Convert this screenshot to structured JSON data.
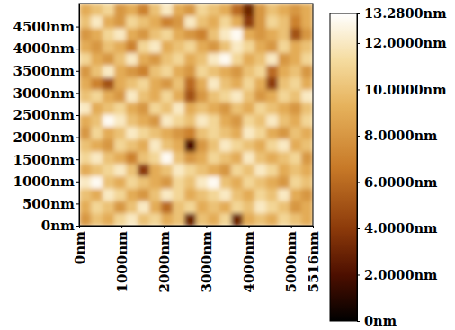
{
  "chart_data": {
    "type": "heatmap",
    "xlim": [
      0,
      5516
    ],
    "ylim": [
      0,
      5020
    ],
    "xticks": [
      {
        "value": 0,
        "label": "0nm"
      },
      {
        "value": 1000,
        "label": "1000nm"
      },
      {
        "value": 2000,
        "label": "2000nm"
      },
      {
        "value": 3000,
        "label": "3000nm"
      },
      {
        "value": 4000,
        "label": "4000nm"
      },
      {
        "value": 5000,
        "label": "5000nm"
      },
      {
        "value": 5516,
        "label": "5516nm"
      }
    ],
    "yticks": [
      {
        "value": 0,
        "label": "0nm"
      },
      {
        "value": 500,
        "label": "500nm"
      },
      {
        "value": 1000,
        "label": "1000nm"
      },
      {
        "value": 1500,
        "label": "1500nm"
      },
      {
        "value": 2000,
        "label": "2000nm"
      },
      {
        "value": 2500,
        "label": "2500nm"
      },
      {
        "value": 3000,
        "label": "3000nm"
      },
      {
        "value": 3500,
        "label": "3500nm"
      },
      {
        "value": 4000,
        "label": "4000nm"
      },
      {
        "value": 4500,
        "label": "4500nm"
      }
    ],
    "cells": [
      [
        9,
        10,
        11,
        8,
        9,
        7,
        10,
        12,
        9,
        8,
        11,
        10,
        9,
        6,
        3,
        8,
        10,
        9,
        8,
        9
      ],
      [
        10,
        12,
        9,
        8,
        11,
        10,
        9,
        7,
        8,
        12,
        10,
        9,
        11,
        9,
        4,
        8,
        11,
        10,
        7,
        9
      ],
      [
        8,
        9,
        11,
        12,
        9,
        8,
        10,
        11,
        9,
        8,
        7,
        10,
        12,
        13,
        9,
        8,
        9,
        10,
        5,
        8
      ],
      [
        9,
        8,
        10,
        9,
        7,
        11,
        12,
        9,
        10,
        11,
        9,
        8,
        10,
        12,
        11,
        9,
        8,
        11,
        9,
        10
      ],
      [
        11,
        9,
        8,
        10,
        12,
        9,
        8,
        10,
        11,
        9,
        10,
        12,
        13,
        11,
        9,
        10,
        12,
        8,
        9,
        11
      ],
      [
        8,
        10,
        12,
        9,
        8,
        7,
        10,
        11,
        9,
        8,
        11,
        10,
        9,
        8,
        10,
        11,
        6,
        9,
        10,
        8
      ],
      [
        9,
        7,
        5,
        9,
        10,
        11,
        9,
        8,
        10,
        6,
        9,
        12,
        10,
        9,
        11,
        9,
        4,
        10,
        11,
        9
      ],
      [
        10,
        11,
        9,
        8,
        12,
        10,
        9,
        11,
        9,
        5,
        8,
        10,
        11,
        12,
        10,
        8,
        9,
        11,
        10,
        12
      ],
      [
        12,
        9,
        10,
        11,
        9,
        8,
        11,
        10,
        12,
        9,
        10,
        9,
        8,
        10,
        9,
        11,
        10,
        9,
        8,
        10
      ],
      [
        9,
        10,
        13,
        12,
        10,
        9,
        8,
        12,
        11,
        10,
        12,
        11,
        9,
        8,
        11,
        10,
        12,
        10,
        9,
        11
      ],
      [
        8,
        11,
        9,
        10,
        12,
        11,
        10,
        9,
        8,
        7,
        10,
        11,
        10,
        9,
        12,
        11,
        9,
        8,
        10,
        9
      ],
      [
        10,
        9,
        8,
        11,
        10,
        9,
        12,
        10,
        9,
        2,
        8,
        10,
        12,
        11,
        10,
        9,
        11,
        12,
        9,
        10
      ],
      [
        11,
        12,
        10,
        9,
        7,
        10,
        11,
        13,
        10,
        8,
        9,
        11,
        10,
        9,
        12,
        10,
        9,
        10,
        11,
        8
      ],
      [
        9,
        10,
        11,
        12,
        10,
        4,
        9,
        10,
        12,
        11,
        10,
        9,
        8,
        11,
        10,
        12,
        11,
        9,
        10,
        9
      ],
      [
        12,
        13,
        10,
        9,
        11,
        10,
        9,
        8,
        11,
        10,
        12,
        13,
        10,
        9,
        11,
        10,
        9,
        8,
        11,
        10
      ],
      [
        10,
        9,
        12,
        11,
        9,
        8,
        10,
        12,
        11,
        9,
        10,
        11,
        12,
        10,
        9,
        11,
        10,
        12,
        9,
        8
      ],
      [
        9,
        11,
        10,
        8,
        10,
        12,
        9,
        6,
        10,
        11,
        9,
        10,
        9,
        11,
        10,
        12,
        11,
        10,
        8,
        9
      ],
      [
        8,
        10,
        9,
        11,
        12,
        10,
        11,
        9,
        10,
        3,
        10,
        9,
        11,
        3,
        9,
        10,
        9,
        11,
        10,
        9
      ]
    ],
    "colorbar_lim": [
      0,
      13.28
    ],
    "colorbar_ticks": [
      {
        "value": 0,
        "label": "0nm"
      },
      {
        "value": 2,
        "label": "2.0000nm"
      },
      {
        "value": 4,
        "label": "4.0000nm"
      },
      {
        "value": 6,
        "label": "6.0000nm"
      },
      {
        "value": 8,
        "label": "8.0000nm"
      },
      {
        "value": 10,
        "label": "10.0000nm"
      },
      {
        "value": 12,
        "label": "12.0000nm"
      },
      {
        "value": 13.28,
        "label": "13.2800nm"
      }
    ]
  }
}
